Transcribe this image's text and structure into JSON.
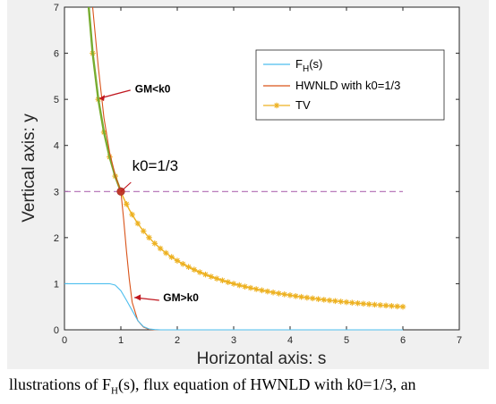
{
  "chart_data": {
    "type": "line",
    "xlabel": "Horizontal axis: s",
    "ylabel": "Vertical axis: y",
    "xlim": [
      0,
      7
    ],
    "ylim": [
      0,
      7
    ],
    "xticks": [
      0,
      1,
      2,
      3,
      4,
      5,
      6,
      7
    ],
    "yticks": [
      0,
      1,
      2,
      3,
      4,
      5,
      6,
      7
    ],
    "grid": false,
    "legend_position": "top-right",
    "series": [
      {
        "name": "F_H(s)",
        "legend_main": "F",
        "legend_sub": "H",
        "legend_rest": "(s)",
        "color": "#4dbeee",
        "x": [
          0,
          0.5,
          0.8,
          0.9,
          1.0,
          1.1,
          1.2,
          1.3,
          1.4,
          1.5,
          1.6,
          1.7,
          1.8,
          2.0,
          3.0,
          4.0,
          5.0,
          6.0
        ],
        "y": [
          1.0,
          1.0,
          1.0,
          0.97,
          0.85,
          0.64,
          0.42,
          0.2,
          0.07,
          0.02,
          0.005,
          0.0,
          0.0,
          0.0,
          0.0,
          0.0,
          0.0,
          0.0
        ]
      },
      {
        "name": "HWNLD with k0=1/3",
        "color": "#d95319",
        "x": [
          0.5,
          0.6,
          0.7,
          0.8,
          0.9,
          1.0,
          1.05,
          1.1,
          1.15,
          1.2,
          1.3,
          1.4,
          1.5,
          1.6,
          1.7,
          1.8,
          2.0,
          3.0,
          4.0,
          5.0,
          6.0
        ],
        "y": [
          7.0,
          5.7,
          4.6,
          3.85,
          3.35,
          3.0,
          2.4,
          1.7,
          1.1,
          0.6,
          0.2,
          0.06,
          0.01,
          0.0,
          0.0,
          0.0,
          0.0,
          0.0,
          0.0,
          0.0,
          0.0
        ]
      },
      {
        "name": "TV",
        "color": "#edb120",
        "function": "y = 3/s",
        "x_range": [
          0.5,
          6.0
        ],
        "marker": "*"
      },
      {
        "name": "",
        "color": "#77ac30",
        "x": [
          0.43,
          0.5,
          0.6,
          0.7,
          0.8,
          0.9,
          1.0
        ],
        "y": [
          7.0,
          6.0,
          5.0,
          4.29,
          3.75,
          3.33,
          3.0
        ]
      },
      {
        "name": "",
        "color": "#b06ab3",
        "dashed": true,
        "x": [
          0,
          6
        ],
        "y": [
          3,
          3
        ]
      }
    ],
    "points": [
      {
        "x": 1.0,
        "y": 3.0,
        "color": "#c0392b"
      }
    ],
    "annotations": [
      {
        "text": "GM<k0",
        "x": 1.25,
        "y": 5.15
      },
      {
        "text": "k0=1/3",
        "x": 1.2,
        "y": 3.45
      },
      {
        "text": "GM>k0",
        "x": 1.75,
        "y": 0.62
      }
    ]
  },
  "caption": "llustrations of F_H(s), flux equation of HWNLD with k0=1/3, an",
  "caption_parts": {
    "before": "llustrations of F",
    "sub": "H",
    "after": "(s), flux equation of HWNLD with k0=1/3, an"
  }
}
